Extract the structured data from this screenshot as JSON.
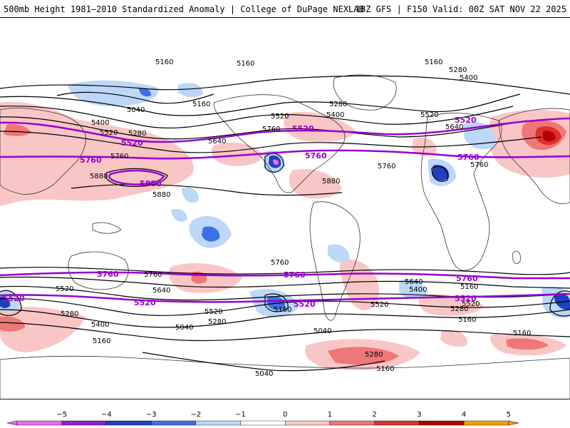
{
  "header": {
    "title_left": "500mb Height 1981–2010 Standardized Anomaly | College of DuPage NEXLAB",
    "title_right": "18Z GFS | F150 Valid: 00Z SAT NOV 22 2025"
  },
  "colors": {
    "neg5": "#e86de8",
    "neg4": "#8a1fd0",
    "neg3": "#1f3fbf",
    "neg2": "#3f6fe6",
    "neg1": "#bcd7f7",
    "zero": "#ffffff",
    "pos1": "#f9c6c6",
    "pos2": "#ef7777",
    "pos3": "#df3030",
    "pos4": "#b30000",
    "pos5": "#f0a000",
    "contour": "#000000",
    "highlight_contour": "#9a00cf"
  },
  "colorbar": {
    "ticks": [
      "−5",
      "−4",
      "−3",
      "−2",
      "−1",
      "0",
      "1",
      "2",
      "3",
      "4",
      "5"
    ]
  },
  "contour_labels": {
    "l5160a": "5160",
    "l5160b": "5160",
    "l5160c": "5160",
    "l5160d": "5160",
    "l5280a": "5280",
    "l5400a": "5400",
    "l5040a": "5040",
    "l5400b": "5400",
    "l5520a": "5520",
    "l5280b": "5280",
    "l5760a": "5760",
    "l5880a": "5880",
    "l5880b": "5880",
    "l5640a": "5640",
    "l5520b": "5520",
    "l5400c": "5400",
    "l5280c": "5280",
    "l5520c": "5520",
    "l5640b": "5640",
    "l5880c": "5880",
    "l5760b": "5760",
    "l5760c": "5760",
    "l5760d": "5760",
    "l5640c": "5640",
    "l5400d": "5400",
    "l5760e": "5760",
    "l5520d": "5520",
    "l5280d": "5280",
    "l5160e": "5160",
    "l5520e": "5520",
    "l5640d": "5640",
    "l5280e": "5280",
    "l5280f": "5280",
    "l5400e": "5400",
    "l5160f": "5160",
    "l5040b": "5040",
    "l5040c": "5040",
    "l5280g": "5280",
    "l5160g": "5160",
    "l5040d": "5040",
    "l5520f": "5520",
    "l5160h": "5160",
    "l5520g": "5520",
    "l5160i": "5160",
    "l5160j": "5160"
  },
  "highlight_labels": {
    "h5520a": "5520",
    "h5520b": "5520",
    "h5760a": "5760",
    "h5880a": "5880",
    "h5520c": "5520",
    "h5760b": "5760",
    "h5520d": "5520",
    "h5760c": "5760",
    "h5760d": "5760",
    "h5760e": "5760",
    "h5760f": "5760",
    "h5520e": "5520",
    "h5520f": "5520",
    "h5520g": "5520"
  }
}
